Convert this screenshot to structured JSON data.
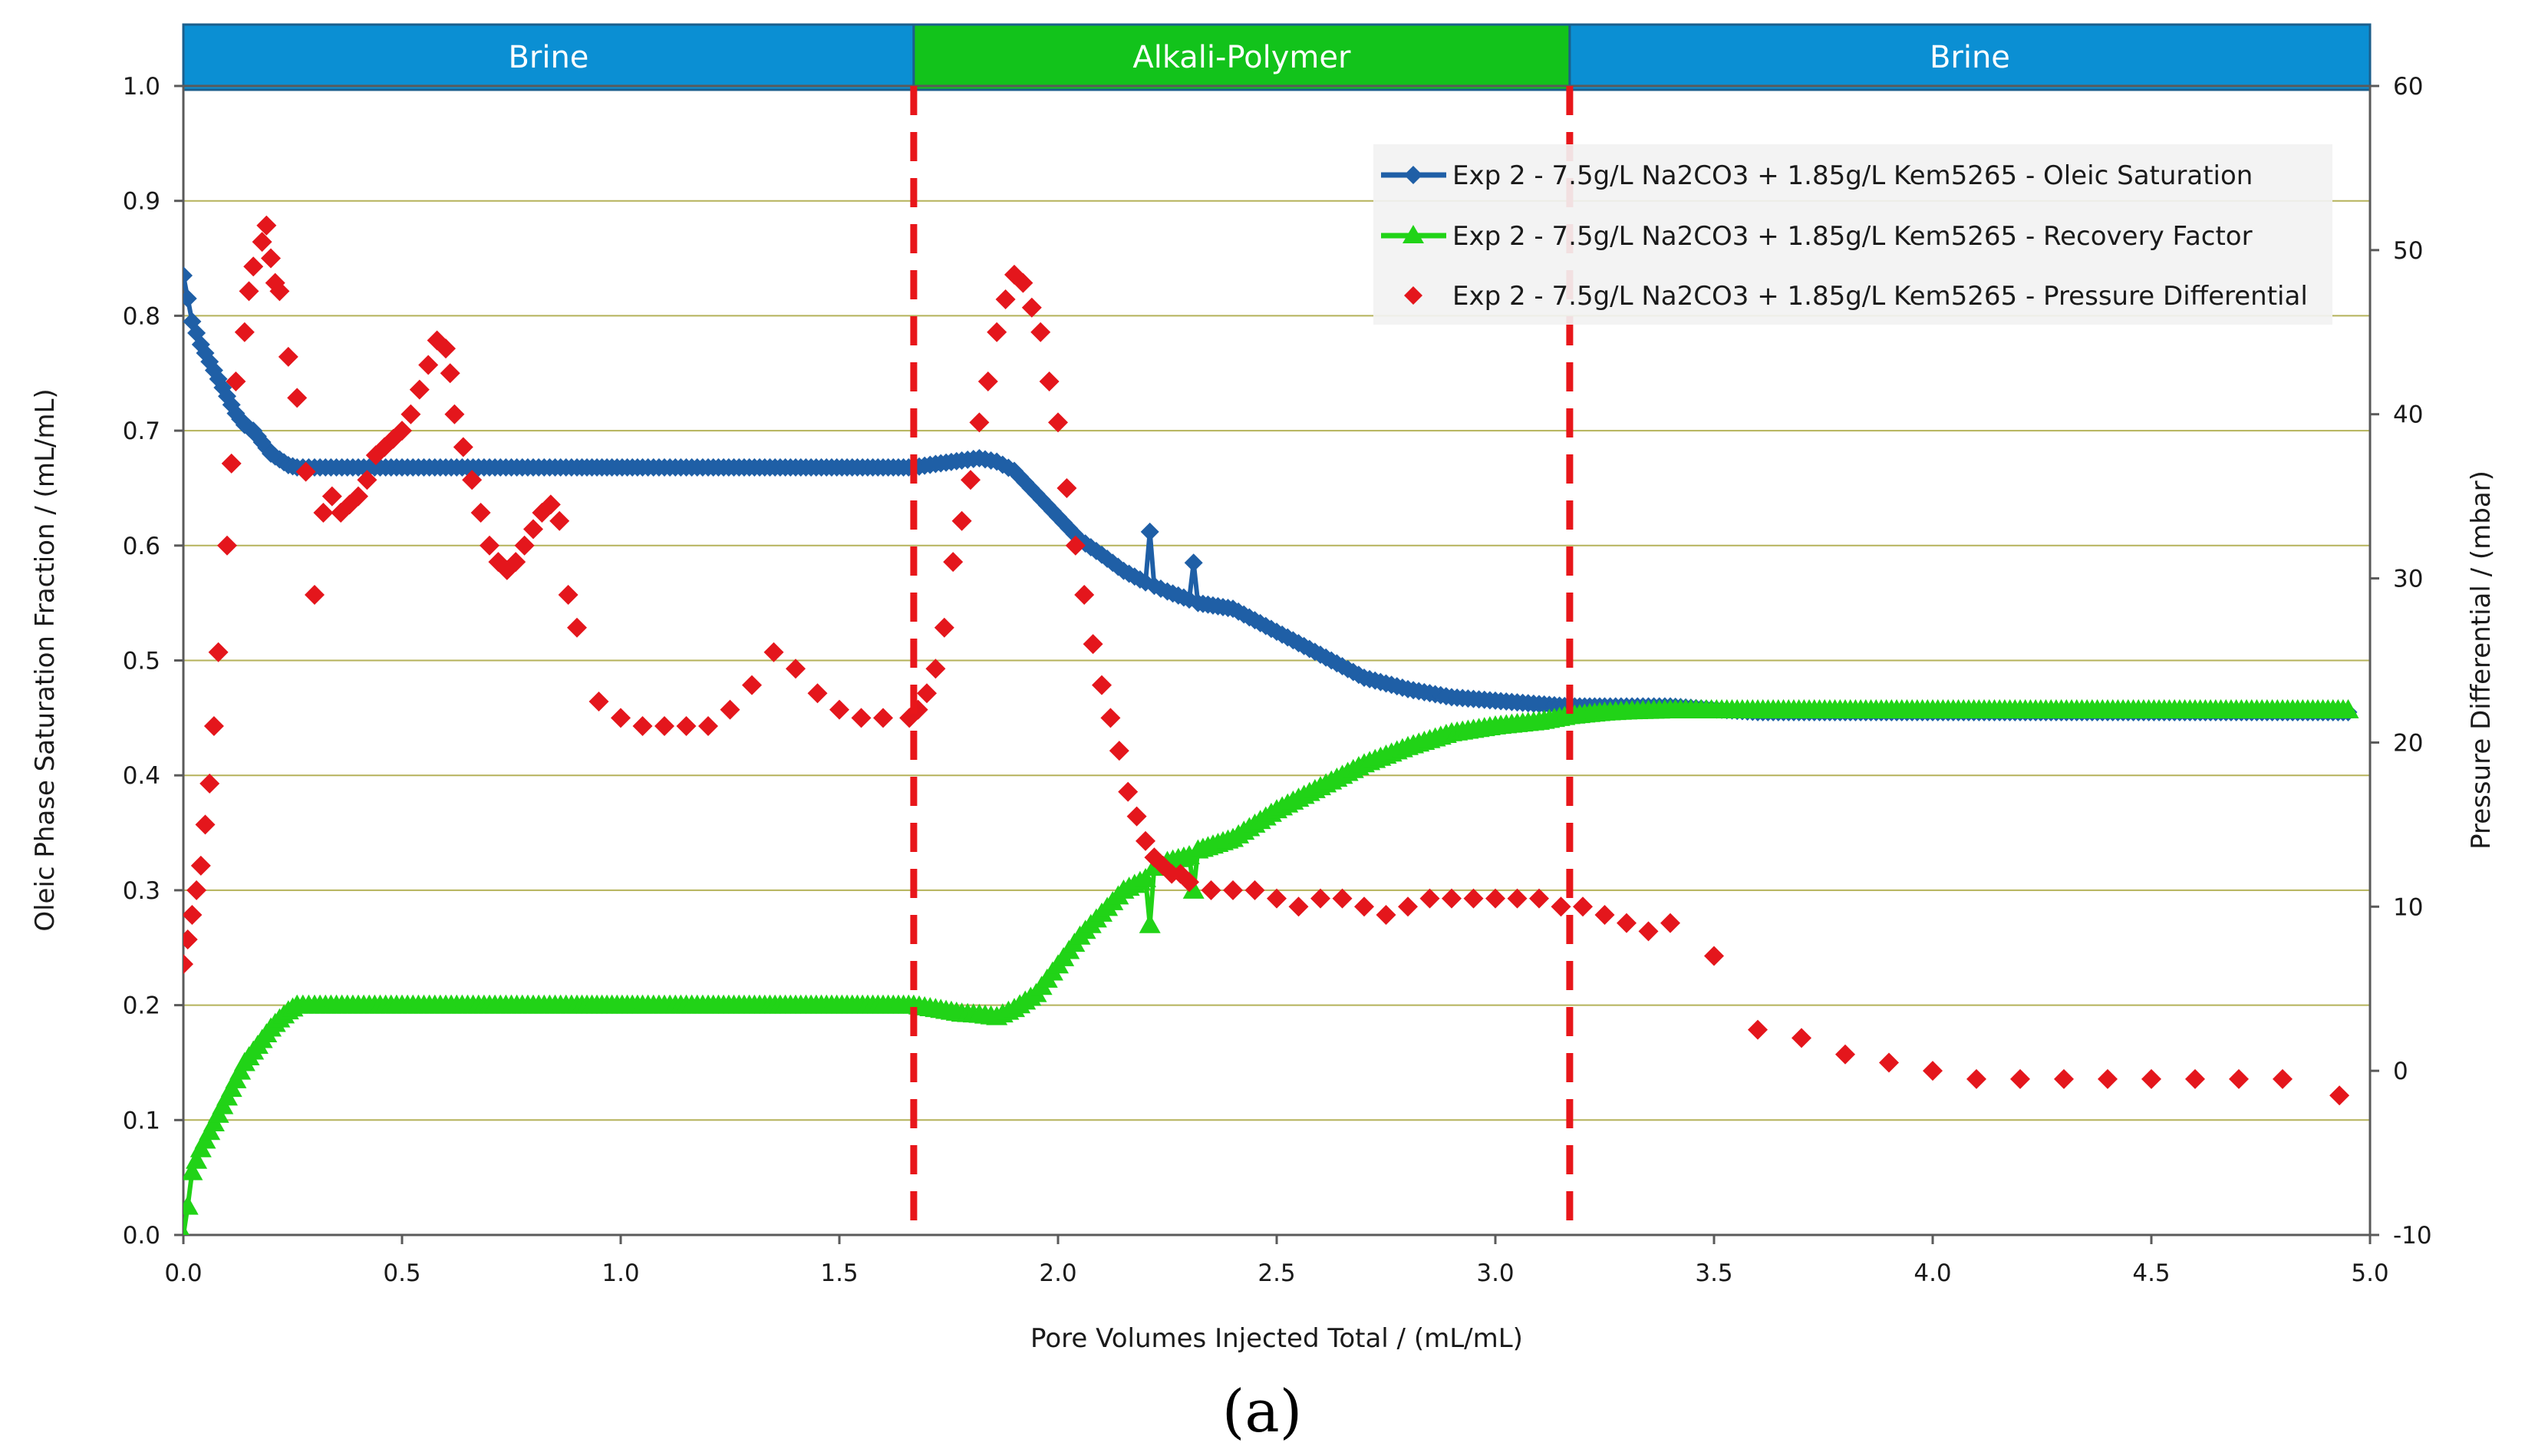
{
  "chart_data": {
    "type": "scatter",
    "caption": "(a)",
    "xlabel": "Pore Volumes Injected Total / (mL/mL)",
    "ylabel_left": "Oleic Phase Saturation Fraction / (mL/mL)",
    "ylabel_right": "Pressure Differential / (mbar)",
    "xlim": [
      0,
      5
    ],
    "ylim_left": [
      0,
      1
    ],
    "ylim_right": [
      -10,
      60
    ],
    "x_ticks": [
      "0.0",
      "0.5",
      "1.0",
      "1.5",
      "2.0",
      "2.5",
      "3.0",
      "3.5",
      "4.0",
      "4.5",
      "5.0"
    ],
    "y_left_ticks": [
      "0.0",
      "0.1",
      "0.2",
      "0.3",
      "0.4",
      "0.5",
      "0.6",
      "0.7",
      "0.8",
      "0.9",
      "1.0"
    ],
    "y_right_ticks": [
      "-10",
      "0",
      "10",
      "20",
      "30",
      "40",
      "50",
      "60"
    ],
    "phase_boundaries": [
      1.67,
      3.17
    ],
    "phases": [
      {
        "label": "Brine",
        "from": 0,
        "to": 1.67,
        "color": "#0b8fd3"
      },
      {
        "label": "Alkali-Polymer",
        "from": 1.67,
        "to": 3.17,
        "color": "#12c31b"
      },
      {
        "label": "Brine",
        "from": 3.17,
        "to": 5.0,
        "color": "#0b8fd3"
      }
    ],
    "colors": {
      "oleic": "#1f5fa6",
      "recovery": "#21d317",
      "pressure": "#e4161c",
      "grid": "#b5b25a",
      "boundary": "#e8161a"
    },
    "legend": [
      "Exp 2 - 7.5g/L Na2CO3 + 1.85g/L Kem5265 - Oleic Saturation",
      "Exp 2 - 7.5g/L Na2CO3 + 1.85g/L Kem5265 - Recovery Factor",
      "Exp 2 - 7.5g/L Na2CO3 + 1.85g/L Kem5265 - Pressure Differential"
    ],
    "series": [
      {
        "name": "Exp 2 - 7.5g/L Na2CO3 + 1.85g/L Kem5265 - Oleic Saturation",
        "axis": "left",
        "x": [
          0.0,
          0.01,
          0.02,
          0.04,
          0.06,
          0.08,
          0.1,
          0.12,
          0.14,
          0.16,
          0.18,
          0.2,
          0.22,
          0.24,
          0.26,
          0.3,
          0.35,
          0.4,
          0.5,
          0.6,
          0.7,
          0.8,
          0.9,
          0.98,
          1.05,
          1.2,
          1.4,
          1.6,
          1.67,
          1.72,
          1.78,
          1.82,
          1.86,
          1.9,
          1.95,
          2.0,
          2.05,
          2.1,
          2.15,
          2.2,
          2.21,
          2.22,
          2.25,
          2.3,
          2.31,
          2.32,
          2.4,
          2.5,
          2.6,
          2.7,
          2.8,
          2.9,
          3.0,
          3.1,
          3.17,
          3.25,
          3.3,
          3.4,
          3.6,
          3.8,
          4.0,
          4.2,
          4.4,
          4.6,
          4.8,
          4.95
        ],
        "y": [
          0.835,
          0.815,
          0.795,
          0.775,
          0.76,
          0.745,
          0.73,
          0.715,
          0.705,
          0.7,
          0.69,
          0.68,
          0.675,
          0.67,
          0.668,
          0.668,
          0.668,
          0.668,
          0.668,
          0.668,
          0.668,
          0.668,
          0.668,
          0.668,
          0.668,
          0.668,
          0.668,
          0.668,
          0.668,
          0.671,
          0.674,
          0.676,
          0.673,
          0.665,
          0.645,
          0.625,
          0.605,
          0.592,
          0.578,
          0.568,
          0.612,
          0.565,
          0.56,
          0.553,
          0.585,
          0.55,
          0.545,
          0.525,
          0.505,
          0.485,
          0.475,
          0.468,
          0.465,
          0.462,
          0.46,
          0.46,
          0.46,
          0.46,
          0.455,
          0.455,
          0.455,
          0.455,
          0.455,
          0.455,
          0.455,
          0.455
        ]
      },
      {
        "name": "Exp 2 - 7.5g/L Na2CO3 + 1.85g/L Kem5265 - Recovery Factor",
        "axis": "left",
        "x": [
          0.0,
          0.01,
          0.02,
          0.04,
          0.06,
          0.08,
          0.1,
          0.12,
          0.14,
          0.16,
          0.18,
          0.2,
          0.22,
          0.24,
          0.26,
          0.3,
          0.4,
          0.5,
          0.6,
          0.7,
          0.8,
          0.9,
          0.98,
          1.05,
          1.2,
          1.4,
          1.6,
          1.67,
          1.72,
          1.78,
          1.82,
          1.86,
          1.9,
          1.95,
          2.0,
          2.05,
          2.1,
          2.15,
          2.2,
          2.21,
          2.22,
          2.25,
          2.3,
          2.31,
          2.32,
          2.4,
          2.5,
          2.6,
          2.7,
          2.8,
          2.9,
          3.0,
          3.1,
          3.17,
          3.25,
          3.3,
          3.4,
          3.6,
          3.8,
          4.0,
          4.2,
          4.4,
          4.6,
          4.8,
          4.95
        ],
        "y": [
          0.0,
          0.025,
          0.055,
          0.075,
          0.09,
          0.105,
          0.12,
          0.135,
          0.15,
          0.16,
          0.17,
          0.18,
          0.188,
          0.195,
          0.2,
          0.2,
          0.2,
          0.2,
          0.2,
          0.2,
          0.2,
          0.2,
          0.2,
          0.2,
          0.2,
          0.2,
          0.2,
          0.2,
          0.197,
          0.193,
          0.192,
          0.19,
          0.197,
          0.21,
          0.235,
          0.26,
          0.28,
          0.3,
          0.31,
          0.27,
          0.32,
          0.325,
          0.33,
          0.3,
          0.335,
          0.345,
          0.37,
          0.39,
          0.41,
          0.425,
          0.437,
          0.443,
          0.447,
          0.452,
          0.455,
          0.456,
          0.457,
          0.457,
          0.457,
          0.457,
          0.457,
          0.457,
          0.457,
          0.457,
          0.457
        ]
      },
      {
        "name": "Exp 2 - 7.5g/L Na2CO3 + 1.85g/L Kem5265 - Pressure Differential",
        "axis": "right",
        "x": [
          0.0,
          0.01,
          0.02,
          0.03,
          0.04,
          0.05,
          0.06,
          0.07,
          0.08,
          0.1,
          0.11,
          0.12,
          0.14,
          0.15,
          0.16,
          0.18,
          0.19,
          0.2,
          0.21,
          0.22,
          0.24,
          0.26,
          0.28,
          0.3,
          0.32,
          0.34,
          0.36,
          0.38,
          0.4,
          0.42,
          0.44,
          0.46,
          0.48,
          0.5,
          0.52,
          0.54,
          0.56,
          0.58,
          0.6,
          0.61,
          0.62,
          0.64,
          0.66,
          0.68,
          0.7,
          0.72,
          0.74,
          0.76,
          0.78,
          0.8,
          0.82,
          0.84,
          0.86,
          0.88,
          0.9,
          0.95,
          1.0,
          1.05,
          1.1,
          1.15,
          1.2,
          1.25,
          1.3,
          1.35,
          1.4,
          1.45,
          1.5,
          1.55,
          1.6,
          1.66,
          1.68,
          1.7,
          1.72,
          1.74,
          1.76,
          1.78,
          1.8,
          1.82,
          1.84,
          1.86,
          1.88,
          1.9,
          1.92,
          1.94,
          1.96,
          1.98,
          2.0,
          2.02,
          2.04,
          2.06,
          2.08,
          2.1,
          2.12,
          2.14,
          2.16,
          2.18,
          2.2,
          2.22,
          2.24,
          2.26,
          2.28,
          2.3,
          2.35,
          2.4,
          2.45,
          2.5,
          2.55,
          2.6,
          2.65,
          2.7,
          2.75,
          2.8,
          2.85,
          2.9,
          2.95,
          3.0,
          3.05,
          3.1,
          3.15,
          3.2,
          3.25,
          3.3,
          3.35,
          3.4,
          3.5,
          3.6,
          3.7,
          3.8,
          3.9,
          4.0,
          4.1,
          4.2,
          4.3,
          4.4,
          4.5,
          4.6,
          4.7,
          4.8,
          4.93
        ],
        "y": [
          6.5,
          8,
          9.5,
          11,
          12.5,
          15,
          17.5,
          21,
          25.5,
          32,
          37,
          42,
          45,
          47.5,
          49,
          50.5,
          51.5,
          49.5,
          48,
          47.5,
          43.5,
          41,
          36.5,
          29,
          34,
          35,
          34,
          34.5,
          35,
          36,
          37.5,
          38,
          38.5,
          39,
          40,
          41.5,
          43,
          44.5,
          44,
          42.5,
          40,
          38,
          36,
          34,
          32,
          31,
          30.5,
          31,
          32,
          33,
          34,
          34.5,
          33.5,
          29,
          27,
          22.5,
          21.5,
          21,
          21,
          21,
          21,
          22,
          23.5,
          25.5,
          24.5,
          23,
          22,
          21.5,
          21.5,
          21.5,
          22,
          23,
          24.5,
          27,
          31,
          33.5,
          36,
          39.5,
          42,
          45,
          47,
          48.5,
          48,
          46.5,
          45,
          42,
          39.5,
          35.5,
          32,
          29,
          26,
          23.5,
          21.5,
          19.5,
          17,
          15.5,
          14,
          13,
          12.5,
          12,
          12,
          11.5,
          11,
          11,
          11,
          10.5,
          10,
          10.5,
          10.5,
          10,
          9.5,
          10,
          10.5,
          10.5,
          10.5,
          10.5,
          10.5,
          10.5,
          10,
          10,
          9.5,
          9,
          8.5,
          9,
          7,
          2.5,
          2,
          1,
          0.5,
          0,
          -0.5,
          -0.5,
          -0.5,
          -0.5,
          -0.5,
          -0.5,
          -0.5,
          -0.5,
          -1.5
        ]
      }
    ]
  }
}
